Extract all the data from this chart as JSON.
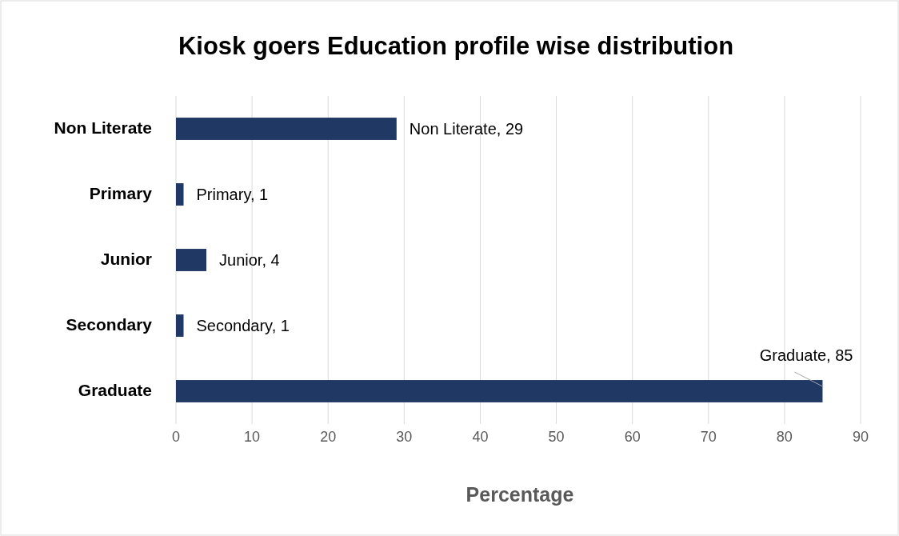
{
  "chart_data": {
    "type": "bar",
    "orientation": "horizontal",
    "title": "Kiosk goers Education profile wise distribution",
    "xlabel": "Percentage",
    "categories": [
      "Non Literate",
      "Primary",
      "Junior",
      "Secondary",
      "Graduate"
    ],
    "values": [
      29,
      1,
      4,
      1,
      85
    ],
    "color": "#1f3864",
    "value_labels": [
      "Non Literate, 29",
      "Primary, 1",
      "Junior, 4",
      "Secondary, 1",
      "Graduate, 85"
    ],
    "xlim": [
      0,
      90
    ],
    "xticks": [
      0,
      10,
      20,
      30,
      40,
      50,
      60,
      70,
      80,
      90
    ],
    "grid": "x"
  }
}
